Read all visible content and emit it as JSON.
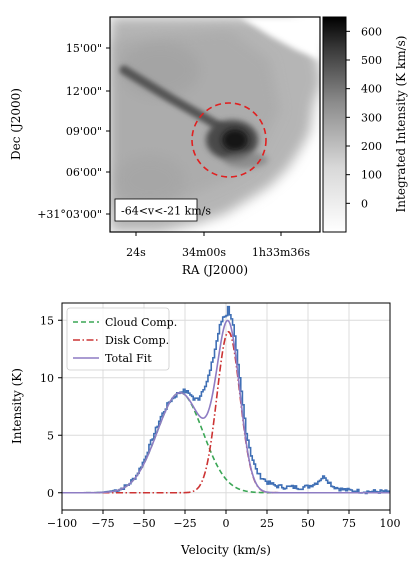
{
  "map_panel": {
    "velocity_range_label": "-64<v<-21 km/s",
    "xlabel": "RA (J2000)",
    "ylabel": "Dec (J2000)",
    "xticks": [
      "24s",
      "34m00s",
      "1h33m36s"
    ],
    "yticks": [
      "15'00\"",
      "12'00\"",
      "09'00\"",
      "06'00\"",
      "+31°03'00\""
    ],
    "colorbar": {
      "label": "Integrated Intensity (K km/s)",
      "ticks": [
        0,
        100,
        200,
        300,
        400,
        500,
        600
      ],
      "range": [
        -100,
        650
      ],
      "colormap": "gray_r"
    },
    "circle_color": "#e02020"
  },
  "chart_data": {
    "type": "line",
    "xlabel": "Velocity (km/s)",
    "ylabel": "Intensity (K)",
    "xlim": [
      -100,
      100
    ],
    "ylim": [
      -1.5,
      16.5
    ],
    "xticks": [
      -100,
      -75,
      -50,
      -25,
      0,
      25,
      50,
      75,
      100
    ],
    "yticks": [
      0,
      5,
      10,
      15
    ],
    "grid": true,
    "legend_position": "top-left",
    "series": [
      {
        "name": "Cloud Comp.",
        "style": "dashed",
        "color": "#3aa655",
        "model": "gaussian",
        "amplitude": 8.7,
        "center": -28,
        "sigma": 14
      },
      {
        "name": "Disk Comp.",
        "style": "dashdot",
        "color": "#cc3333",
        "model": "gaussian",
        "amplitude": 14.0,
        "center": 1.5,
        "sigma": 7
      },
      {
        "name": "Total Fit",
        "style": "solid",
        "color": "#8e7cc3",
        "model": "sum"
      },
      {
        "name": "",
        "style": "step",
        "color": "#3f6fb5",
        "x": [
          -100,
          -90,
          -80,
          -75,
          -70,
          -65,
          -60,
          -55,
          -50,
          -45,
          -40,
          -35,
          -30,
          -27,
          -25,
          -22,
          -20,
          -17,
          -15,
          -12,
          -10,
          -8,
          -6,
          -4,
          -2,
          0,
          1,
          2,
          3,
          4,
          5,
          7,
          10,
          12,
          15,
          18,
          20,
          25,
          30,
          35,
          40,
          45,
          50,
          55,
          58,
          60,
          62,
          65,
          70,
          75,
          80,
          85,
          90,
          95,
          100
        ],
        "y": [
          0,
          0,
          0,
          0.05,
          0.15,
          0.3,
          0.7,
          1.5,
          2.9,
          4.8,
          6.6,
          7.9,
          8.6,
          8.9,
          8.8,
          8.6,
          8.1,
          8.2,
          8.8,
          9.7,
          10.6,
          11.8,
          13.2,
          14.5,
          15.3,
          15.5,
          16.1,
          15.6,
          15.2,
          14.5,
          13.5,
          11.0,
          7.6,
          5.3,
          3.3,
          2.0,
          1.5,
          0.9,
          0.6,
          0.5,
          0.5,
          0.45,
          0.55,
          0.9,
          1.3,
          1.4,
          1.0,
          0.55,
          0.3,
          0.2,
          0.15,
          0.1,
          0.1,
          0.1,
          0.05
        ]
      }
    ]
  }
}
